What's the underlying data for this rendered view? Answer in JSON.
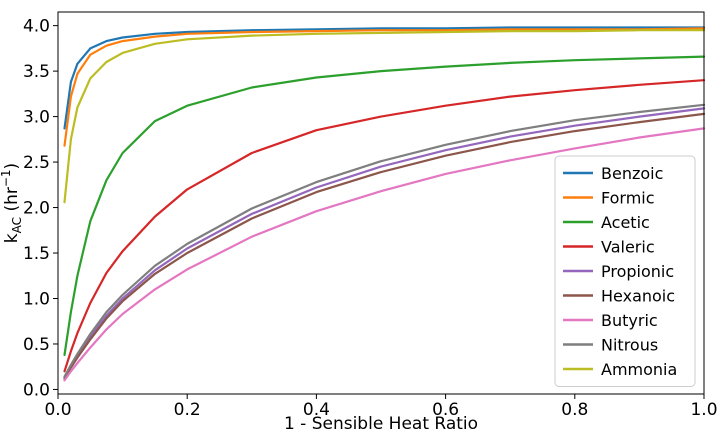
{
  "chart_data": {
    "type": "line",
    "xlabel": "1 - Sensible Heat Ratio",
    "ylabel_main": "k",
    "ylabel_sub": "AC",
    "ylabel_unit": " (hr",
    "ylabel_sup": "−1",
    "ylabel_close": ")",
    "xlim": [
      0.0,
      1.0
    ],
    "ylim": [
      -0.05,
      4.15
    ],
    "xticks": [
      {
        "value": 0.0,
        "label": "0.0"
      },
      {
        "value": 0.2,
        "label": "0.2"
      },
      {
        "value": 0.4,
        "label": "0.4"
      },
      {
        "value": 0.6,
        "label": "0.6"
      },
      {
        "value": 0.8,
        "label": "0.8"
      },
      {
        "value": 1.0,
        "label": "1.0"
      }
    ],
    "yticks": [
      {
        "value": 0.0,
        "label": "0.0"
      },
      {
        "value": 0.5,
        "label": "0.5"
      },
      {
        "value": 1.0,
        "label": "1.0"
      },
      {
        "value": 1.5,
        "label": "1.5"
      },
      {
        "value": 2.0,
        "label": "2.0"
      },
      {
        "value": 2.5,
        "label": "2.5"
      },
      {
        "value": 3.0,
        "label": "3.0"
      },
      {
        "value": 3.5,
        "label": "3.5"
      },
      {
        "value": 4.0,
        "label": "4.0"
      }
    ],
    "grid": false,
    "legend_position": "lower-right",
    "x": [
      0.01,
      0.02,
      0.03,
      0.05,
      0.075,
      0.1,
      0.15,
      0.2,
      0.3,
      0.4,
      0.5,
      0.6,
      0.7,
      0.8,
      0.9,
      1.0
    ],
    "series": [
      {
        "name": "Benzoic",
        "color": "#1f77b4",
        "values": [
          2.87,
          3.38,
          3.58,
          3.75,
          3.83,
          3.87,
          3.91,
          3.93,
          3.95,
          3.96,
          3.97,
          3.97,
          3.98,
          3.98,
          3.98,
          3.98
        ]
      },
      {
        "name": "Formic",
        "color": "#ff7f0e",
        "values": [
          2.68,
          3.22,
          3.47,
          3.68,
          3.78,
          3.83,
          3.88,
          3.91,
          3.93,
          3.94,
          3.95,
          3.95,
          3.96,
          3.96,
          3.96,
          3.97
        ]
      },
      {
        "name": "Acetic",
        "color": "#2ca02c",
        "values": [
          0.38,
          0.85,
          1.25,
          1.85,
          2.3,
          2.6,
          2.95,
          3.12,
          3.32,
          3.43,
          3.5,
          3.55,
          3.59,
          3.62,
          3.64,
          3.66
        ]
      },
      {
        "name": "Valeric",
        "color": "#d62728",
        "values": [
          0.2,
          0.42,
          0.62,
          0.95,
          1.28,
          1.52,
          1.9,
          2.2,
          2.6,
          2.85,
          3.0,
          3.12,
          3.22,
          3.29,
          3.35,
          3.4
        ]
      },
      {
        "name": "Propionic",
        "color": "#9467bd",
        "values": [
          0.13,
          0.25,
          0.37,
          0.58,
          0.81,
          1.0,
          1.31,
          1.55,
          1.93,
          2.22,
          2.45,
          2.63,
          2.78,
          2.9,
          3.0,
          3.09
        ]
      },
      {
        "name": "Hexanoic",
        "color": "#8c564b",
        "values": [
          0.12,
          0.24,
          0.35,
          0.55,
          0.78,
          0.97,
          1.27,
          1.5,
          1.88,
          2.17,
          2.39,
          2.57,
          2.72,
          2.84,
          2.94,
          3.03
        ]
      },
      {
        "name": "Butyric",
        "color": "#e377c2",
        "values": [
          0.1,
          0.2,
          0.29,
          0.46,
          0.66,
          0.83,
          1.1,
          1.32,
          1.68,
          1.96,
          2.18,
          2.37,
          2.52,
          2.65,
          2.77,
          2.87
        ]
      },
      {
        "name": "Nitrous",
        "color": "#7f7f7f",
        "values": [
          0.14,
          0.27,
          0.39,
          0.61,
          0.85,
          1.04,
          1.36,
          1.6,
          1.99,
          2.28,
          2.51,
          2.69,
          2.84,
          2.96,
          3.05,
          3.13
        ]
      },
      {
        "name": "Ammonia",
        "color": "#bcbd22",
        "values": [
          2.06,
          2.75,
          3.1,
          3.42,
          3.6,
          3.7,
          3.8,
          3.85,
          3.89,
          3.91,
          3.92,
          3.93,
          3.94,
          3.94,
          3.95,
          3.95
        ]
      }
    ]
  }
}
